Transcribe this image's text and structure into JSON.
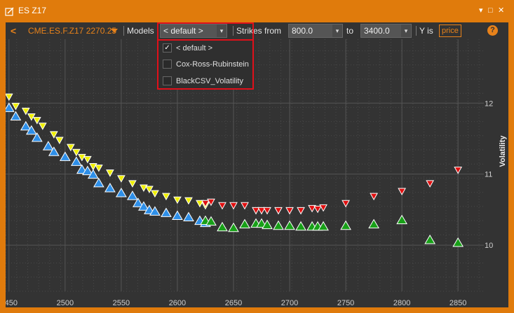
{
  "window": {
    "title": "ES Z17",
    "controls": [
      "▾",
      "□",
      "✕"
    ]
  },
  "toolbar": {
    "instrument": "CME.ES.F.Z17 2270.25",
    "models_label": "Models",
    "model_selected": "< default >",
    "strikes_label": "Strikes from",
    "strike_from": "800.0",
    "to_label": "to",
    "strike_to": "3400.0",
    "y_is_label": "Y is",
    "y_is_value": "price",
    "help": "?"
  },
  "models_menu": {
    "items": [
      {
        "label": "< default >",
        "checked": true
      },
      {
        "label": "Cox-Ross-Rubinstein",
        "checked": false
      },
      {
        "label": "BlackCSV_Volatility",
        "checked": false
      }
    ]
  },
  "chart_data": {
    "type": "scatter",
    "xlabel": "",
    "ylabel": "Volatility",
    "x_ticks": [
      "2450",
      "2500",
      "2550",
      "2600",
      "2650",
      "2700",
      "2750",
      "2800",
      "2850"
    ],
    "y_ticks": [
      "10",
      "11",
      "12"
    ],
    "xlim": [
      2447,
      2873
    ],
    "ylim": [
      9.35,
      12.9
    ],
    "grid": true,
    "series": [
      {
        "marker": "triangle-down",
        "color": "#f0f000",
        "points": [
          [
            2450,
            12.08
          ],
          [
            2456,
            11.95
          ],
          [
            2465,
            11.88
          ],
          [
            2470,
            11.8
          ],
          [
            2475,
            11.75
          ],
          [
            2480,
            11.67
          ],
          [
            2490,
            11.55
          ],
          [
            2495,
            11.47
          ],
          [
            2505,
            11.37
          ],
          [
            2510,
            11.3
          ],
          [
            2515,
            11.23
          ],
          [
            2520,
            11.2
          ],
          [
            2525,
            11.1
          ],
          [
            2530,
            11.08
          ],
          [
            2540,
            11.01
          ],
          [
            2550,
            10.93
          ],
          [
            2560,
            10.86
          ],
          [
            2570,
            10.8
          ],
          [
            2575,
            10.78
          ],
          [
            2580,
            10.72
          ],
          [
            2590,
            10.68
          ],
          [
            2600,
            10.63
          ],
          [
            2610,
            10.62
          ],
          [
            2620,
            10.58
          ],
          [
            2625,
            10.55
          ]
        ]
      },
      {
        "marker": "triangle-up",
        "color": "#2e8fe8",
        "points": [
          [
            2450,
            11.94
          ],
          [
            2456,
            11.82
          ],
          [
            2465,
            11.68
          ],
          [
            2470,
            11.62
          ],
          [
            2475,
            11.52
          ],
          [
            2485,
            11.4
          ],
          [
            2490,
            11.32
          ],
          [
            2500,
            11.25
          ],
          [
            2510,
            11.18
          ],
          [
            2515,
            11.07
          ],
          [
            2520,
            11.05
          ],
          [
            2525,
            11.0
          ],
          [
            2530,
            10.88
          ],
          [
            2540,
            10.81
          ],
          [
            2550,
            10.74
          ],
          [
            2560,
            10.7
          ],
          [
            2565,
            10.6
          ],
          [
            2570,
            10.55
          ],
          [
            2575,
            10.5
          ],
          [
            2580,
            10.48
          ],
          [
            2590,
            10.46
          ],
          [
            2600,
            10.42
          ],
          [
            2610,
            10.4
          ],
          [
            2620,
            10.35
          ],
          [
            2625,
            10.32
          ]
        ]
      },
      {
        "marker": "triangle-down",
        "color": "#e01010",
        "points": [
          [
            2625,
            10.58
          ],
          [
            2630,
            10.6
          ],
          [
            2640,
            10.55
          ],
          [
            2650,
            10.55
          ],
          [
            2660,
            10.55
          ],
          [
            2670,
            10.48
          ],
          [
            2675,
            10.48
          ],
          [
            2680,
            10.48
          ],
          [
            2690,
            10.48
          ],
          [
            2700,
            10.48
          ],
          [
            2710,
            10.48
          ],
          [
            2720,
            10.51
          ],
          [
            2725,
            10.5
          ],
          [
            2730,
            10.52
          ],
          [
            2750,
            10.58
          ],
          [
            2775,
            10.68
          ],
          [
            2800,
            10.75
          ],
          [
            2825,
            10.86
          ],
          [
            2850,
            11.05
          ]
        ]
      },
      {
        "marker": "triangle-up",
        "color": "#18a018",
        "points": [
          [
            2625,
            10.35
          ],
          [
            2630,
            10.34
          ],
          [
            2640,
            10.26
          ],
          [
            2650,
            10.25
          ],
          [
            2660,
            10.3
          ],
          [
            2670,
            10.31
          ],
          [
            2675,
            10.31
          ],
          [
            2680,
            10.29
          ],
          [
            2690,
            10.28
          ],
          [
            2700,
            10.28
          ],
          [
            2710,
            10.27
          ],
          [
            2720,
            10.27
          ],
          [
            2725,
            10.27
          ],
          [
            2730,
            10.27
          ],
          [
            2750,
            10.28
          ],
          [
            2775,
            10.3
          ],
          [
            2800,
            10.36
          ],
          [
            2825,
            10.08
          ],
          [
            2850,
            10.04
          ]
        ]
      }
    ]
  }
}
